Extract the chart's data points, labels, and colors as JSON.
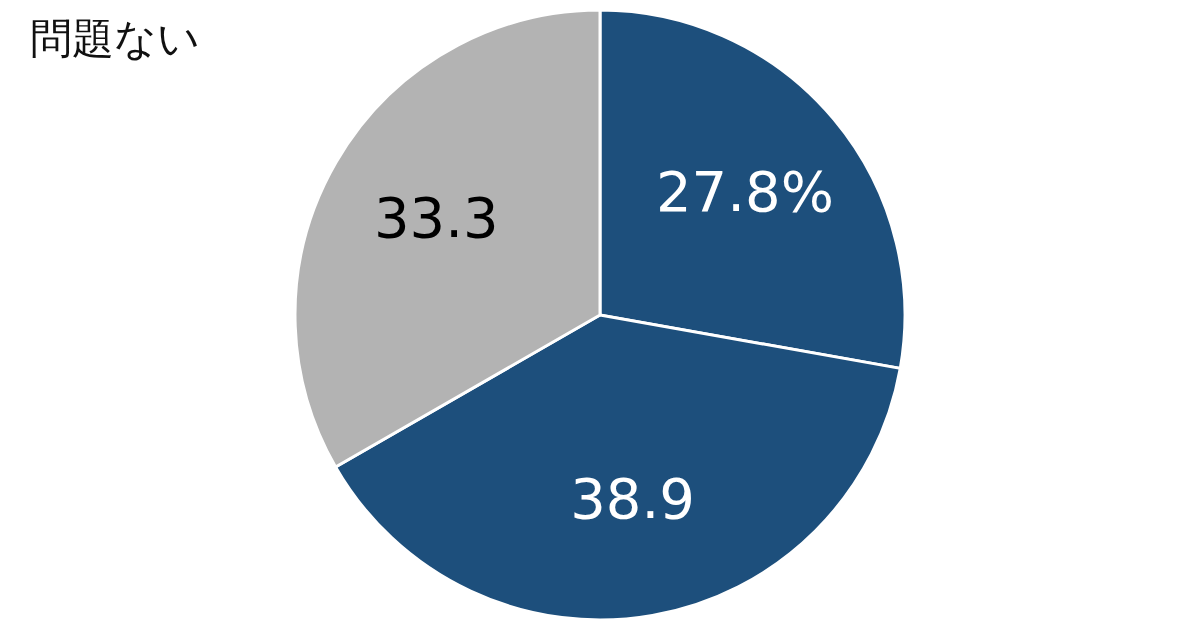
{
  "chart_data": {
    "type": "pie",
    "categories": [
      null,
      null,
      "問題ない"
    ],
    "values": [
      27.8,
      38.9,
      33.3
    ],
    "value_labels": [
      "27.8%",
      "38.9",
      "33.3"
    ],
    "colors": [
      "#1d4f7c",
      "#1d4f7c",
      "#b3b3b3"
    ],
    "legend": false
  }
}
